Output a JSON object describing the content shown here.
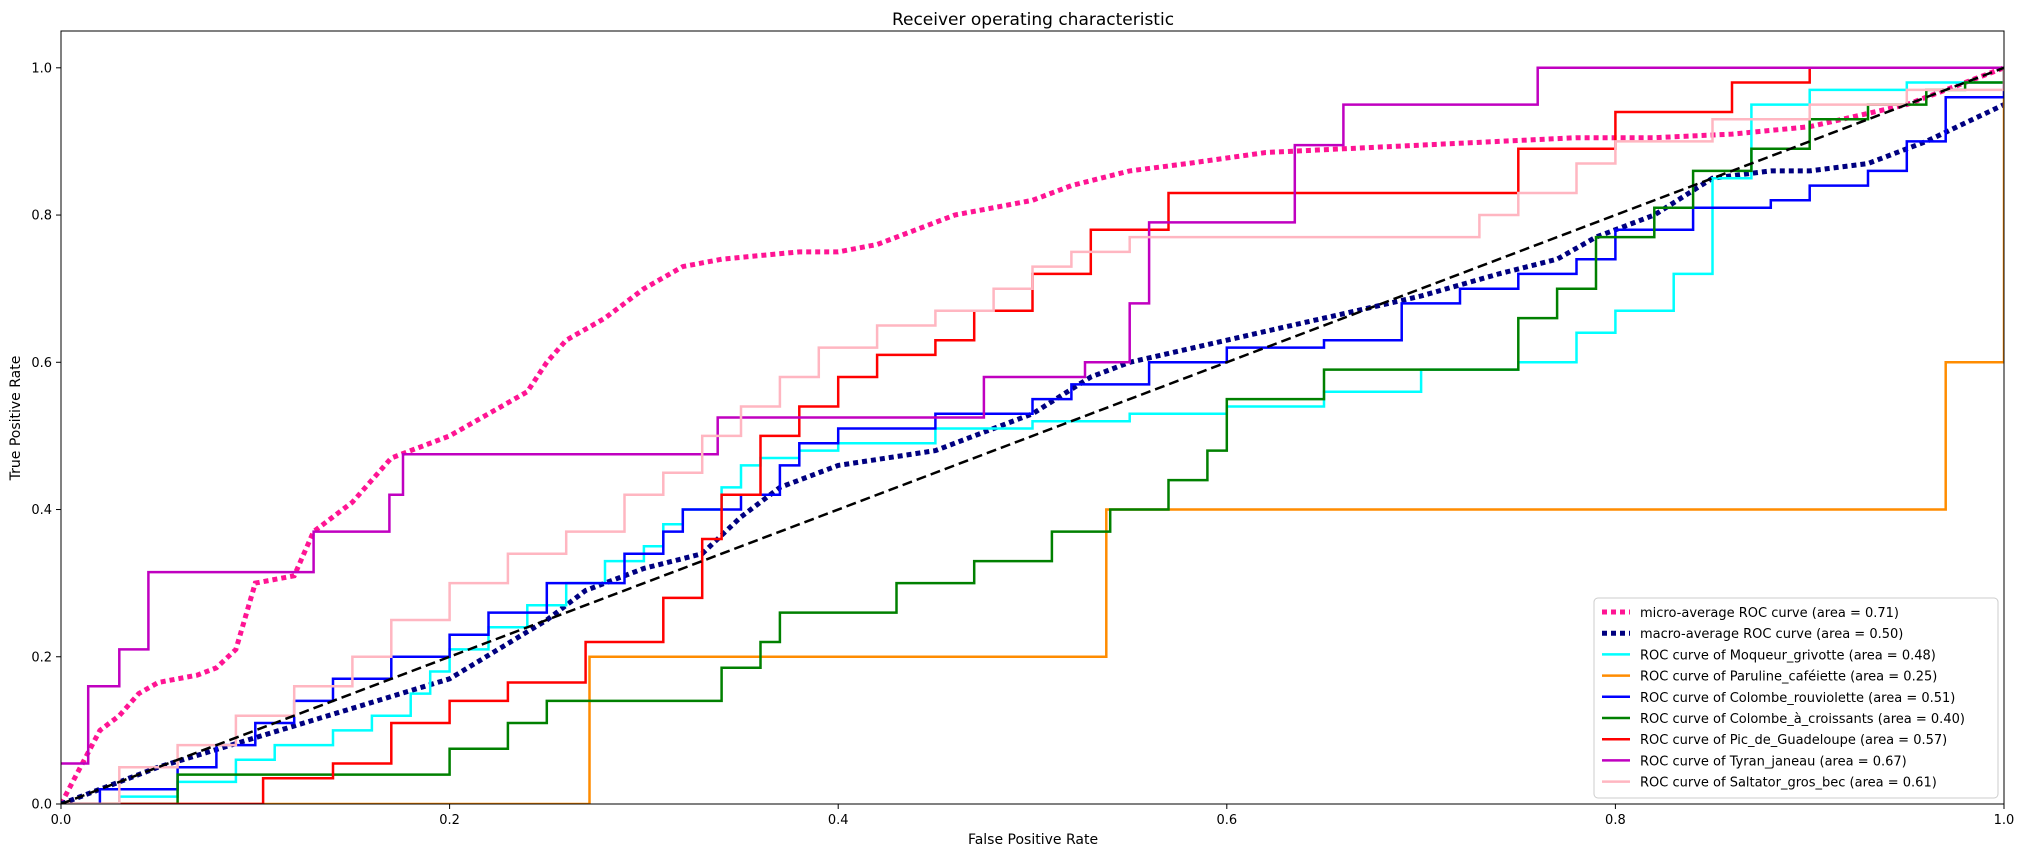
{
  "chart_data": {
    "type": "line",
    "title": "Receiver operating characteristic",
    "xlabel": "False Positive Rate",
    "ylabel": "True Positive Rate",
    "xlim": [
      0.0,
      1.0
    ],
    "ylim": [
      0.0,
      1.05
    ],
    "xticks": [
      "0.0",
      "0.2",
      "0.4",
      "0.6",
      "0.8",
      "1.0"
    ],
    "yticks": [
      "0.0",
      "0.2",
      "0.4",
      "0.6",
      "0.8",
      "1.0"
    ],
    "grid": false,
    "legend_position": "bottom-right",
    "series": [
      {
        "name": "micro-average ROC curve (area = 0.71)",
        "color": "#ff1493",
        "style": "dotted",
        "x": [
          0.0,
          0.01,
          0.02,
          0.03,
          0.04,
          0.05,
          0.06,
          0.07,
          0.08,
          0.09,
          0.1,
          0.12,
          0.13,
          0.15,
          0.17,
          0.18,
          0.2,
          0.22,
          0.24,
          0.25,
          0.26,
          0.28,
          0.3,
          0.32,
          0.34,
          0.36,
          0.38,
          0.4,
          0.42,
          0.44,
          0.46,
          0.48,
          0.5,
          0.52,
          0.55,
          0.58,
          0.62,
          0.66,
          0.7,
          0.74,
          0.78,
          0.82,
          0.86,
          0.9,
          0.95,
          1.0
        ],
        "y": [
          0.0,
          0.05,
          0.1,
          0.12,
          0.15,
          0.165,
          0.17,
          0.175,
          0.185,
          0.21,
          0.3,
          0.31,
          0.37,
          0.41,
          0.47,
          0.48,
          0.5,
          0.53,
          0.56,
          0.6,
          0.63,
          0.66,
          0.7,
          0.73,
          0.74,
          0.745,
          0.75,
          0.75,
          0.76,
          0.78,
          0.8,
          0.81,
          0.82,
          0.84,
          0.86,
          0.87,
          0.885,
          0.89,
          0.895,
          0.9,
          0.905,
          0.905,
          0.91,
          0.92,
          0.95,
          1.0
        ]
      },
      {
        "name": "macro-average ROC curve (area = 0.50)",
        "color": "#000080",
        "style": "dotted",
        "x": [
          0.0,
          0.05,
          0.1,
          0.15,
          0.2,
          0.25,
          0.27,
          0.3,
          0.33,
          0.35,
          0.37,
          0.4,
          0.45,
          0.48,
          0.5,
          0.53,
          0.55,
          0.6,
          0.65,
          0.7,
          0.74,
          0.77,
          0.79,
          0.82,
          0.85,
          0.88,
          0.9,
          0.93,
          0.96,
          1.0
        ],
        "y": [
          0.0,
          0.05,
          0.09,
          0.13,
          0.17,
          0.25,
          0.29,
          0.32,
          0.34,
          0.39,
          0.43,
          0.46,
          0.48,
          0.51,
          0.53,
          0.58,
          0.6,
          0.63,
          0.66,
          0.69,
          0.72,
          0.74,
          0.77,
          0.8,
          0.85,
          0.86,
          0.86,
          0.87,
          0.9,
          0.95
        ]
      },
      {
        "name": "ROC curve of Moqueur_grivotte (area = 0.48)",
        "color": "#00ffff",
        "style": "solid",
        "step": true,
        "x": [
          0.0,
          0.03,
          0.06,
          0.09,
          0.11,
          0.14,
          0.16,
          0.18,
          0.19,
          0.2,
          0.22,
          0.24,
          0.26,
          0.28,
          0.3,
          0.31,
          0.32,
          0.34,
          0.35,
          0.36,
          0.38,
          0.4,
          0.45,
          0.5,
          0.55,
          0.6,
          0.65,
          0.7,
          0.75,
          0.78,
          0.8,
          0.83,
          0.85,
          0.87,
          0.9,
          0.95,
          1.0
        ],
        "y": [
          0.0,
          0.01,
          0.03,
          0.06,
          0.08,
          0.1,
          0.12,
          0.15,
          0.18,
          0.21,
          0.24,
          0.27,
          0.3,
          0.33,
          0.35,
          0.38,
          0.4,
          0.43,
          0.46,
          0.47,
          0.48,
          0.49,
          0.51,
          0.52,
          0.53,
          0.54,
          0.56,
          0.59,
          0.6,
          0.64,
          0.67,
          0.72,
          0.85,
          0.95,
          0.97,
          0.98,
          1.0
        ]
      },
      {
        "name": "ROC curve of Paruline_caféiette (area = 0.25)",
        "color": "#ff8c00",
        "style": "solid",
        "step": true,
        "x": [
          0.0,
          0.272,
          0.538,
          0.97,
          1.0
        ],
        "y": [
          0.0,
          0.2,
          0.4,
          0.6,
          1.0
        ]
      },
      {
        "name": "ROC curve of Colombe_rouviolette (area = 0.51)",
        "color": "#0000ff",
        "style": "solid",
        "step": true,
        "x": [
          0.0,
          0.02,
          0.06,
          0.08,
          0.1,
          0.12,
          0.14,
          0.17,
          0.2,
          0.22,
          0.25,
          0.29,
          0.31,
          0.32,
          0.35,
          0.37,
          0.38,
          0.4,
          0.45,
          0.5,
          0.52,
          0.56,
          0.6,
          0.65,
          0.69,
          0.72,
          0.75,
          0.78,
          0.8,
          0.84,
          0.88,
          0.9,
          0.93,
          0.95,
          0.97,
          1.0
        ],
        "y": [
          0.0,
          0.02,
          0.05,
          0.08,
          0.11,
          0.14,
          0.17,
          0.2,
          0.23,
          0.26,
          0.3,
          0.34,
          0.37,
          0.4,
          0.42,
          0.46,
          0.49,
          0.51,
          0.53,
          0.55,
          0.57,
          0.6,
          0.62,
          0.63,
          0.68,
          0.7,
          0.72,
          0.74,
          0.78,
          0.81,
          0.82,
          0.84,
          0.86,
          0.9,
          0.96,
          1.0
        ]
      },
      {
        "name": "ROC curve of Colombe_à_croissants (area = 0.40)",
        "color": "#008000",
        "style": "solid",
        "step": true,
        "x": [
          0.0,
          0.06,
          0.2,
          0.23,
          0.25,
          0.34,
          0.36,
          0.37,
          0.43,
          0.47,
          0.51,
          0.54,
          0.57,
          0.59,
          0.6,
          0.65,
          0.75,
          0.77,
          0.79,
          0.82,
          0.84,
          0.87,
          0.9,
          0.93,
          0.96,
          0.98,
          1.0
        ],
        "y": [
          0.0,
          0.04,
          0.075,
          0.11,
          0.14,
          0.185,
          0.22,
          0.26,
          0.3,
          0.33,
          0.37,
          0.4,
          0.44,
          0.48,
          0.55,
          0.59,
          0.66,
          0.7,
          0.77,
          0.81,
          0.86,
          0.89,
          0.93,
          0.95,
          0.97,
          0.98,
          1.0
        ]
      },
      {
        "name": "ROC curve of Pic_de_Guadeloupe (area = 0.57)",
        "color": "#ff0000",
        "style": "solid",
        "step": true,
        "x": [
          0.0,
          0.104,
          0.14,
          0.17,
          0.2,
          0.23,
          0.27,
          0.31,
          0.33,
          0.34,
          0.36,
          0.38,
          0.4,
          0.42,
          0.45,
          0.47,
          0.5,
          0.53,
          0.57,
          0.6,
          0.63,
          0.67,
          0.71,
          0.75,
          0.8,
          0.86,
          0.9,
          1.0
        ],
        "y": [
          0.0,
          0.035,
          0.055,
          0.11,
          0.14,
          0.165,
          0.22,
          0.28,
          0.36,
          0.42,
          0.5,
          0.54,
          0.58,
          0.61,
          0.63,
          0.67,
          0.72,
          0.78,
          0.83,
          0.83,
          0.83,
          0.83,
          0.83,
          0.89,
          0.94,
          0.98,
          1.0,
          1.0
        ]
      },
      {
        "name": "ROC curve of Tyran_janeau (area = 0.67)",
        "color": "#c000c0",
        "style": "solid",
        "step": true,
        "x": [
          0.0,
          0.014,
          0.03,
          0.045,
          0.13,
          0.169,
          0.176,
          0.33,
          0.338,
          0.475,
          0.525,
          0.527,
          0.55,
          0.56,
          0.63,
          0.635,
          0.66,
          0.76,
          0.78,
          1.0
        ],
        "y": [
          0.055,
          0.16,
          0.21,
          0.315,
          0.37,
          0.42,
          0.475,
          0.475,
          0.525,
          0.58,
          0.58,
          0.6,
          0.68,
          0.79,
          0.79,
          0.895,
          0.95,
          1.0,
          1.0,
          1.0
        ]
      },
      {
        "name": "ROC curve of Saltator_gros_bec (area = 0.61)",
        "color": "#ffb6c1",
        "style": "solid",
        "step": true,
        "x": [
          0.0,
          0.03,
          0.06,
          0.09,
          0.12,
          0.15,
          0.17,
          0.2,
          0.23,
          0.26,
          0.29,
          0.31,
          0.33,
          0.35,
          0.37,
          0.39,
          0.42,
          0.45,
          0.48,
          0.5,
          0.52,
          0.55,
          0.6,
          0.65,
          0.7,
          0.73,
          0.75,
          0.78,
          0.8,
          0.85,
          0.9,
          0.95,
          1.0
        ],
        "y": [
          0.0,
          0.05,
          0.08,
          0.12,
          0.16,
          0.2,
          0.25,
          0.3,
          0.34,
          0.37,
          0.42,
          0.45,
          0.5,
          0.54,
          0.58,
          0.62,
          0.65,
          0.67,
          0.7,
          0.73,
          0.75,
          0.77,
          0.77,
          0.77,
          0.77,
          0.8,
          0.83,
          0.87,
          0.9,
          0.93,
          0.95,
          0.97,
          1.0
        ]
      },
      {
        "name": "",
        "color": "#000000",
        "style": "dashed",
        "x": [
          0.0,
          1.0
        ],
        "y": [
          0.0,
          1.0
        ]
      }
    ]
  }
}
